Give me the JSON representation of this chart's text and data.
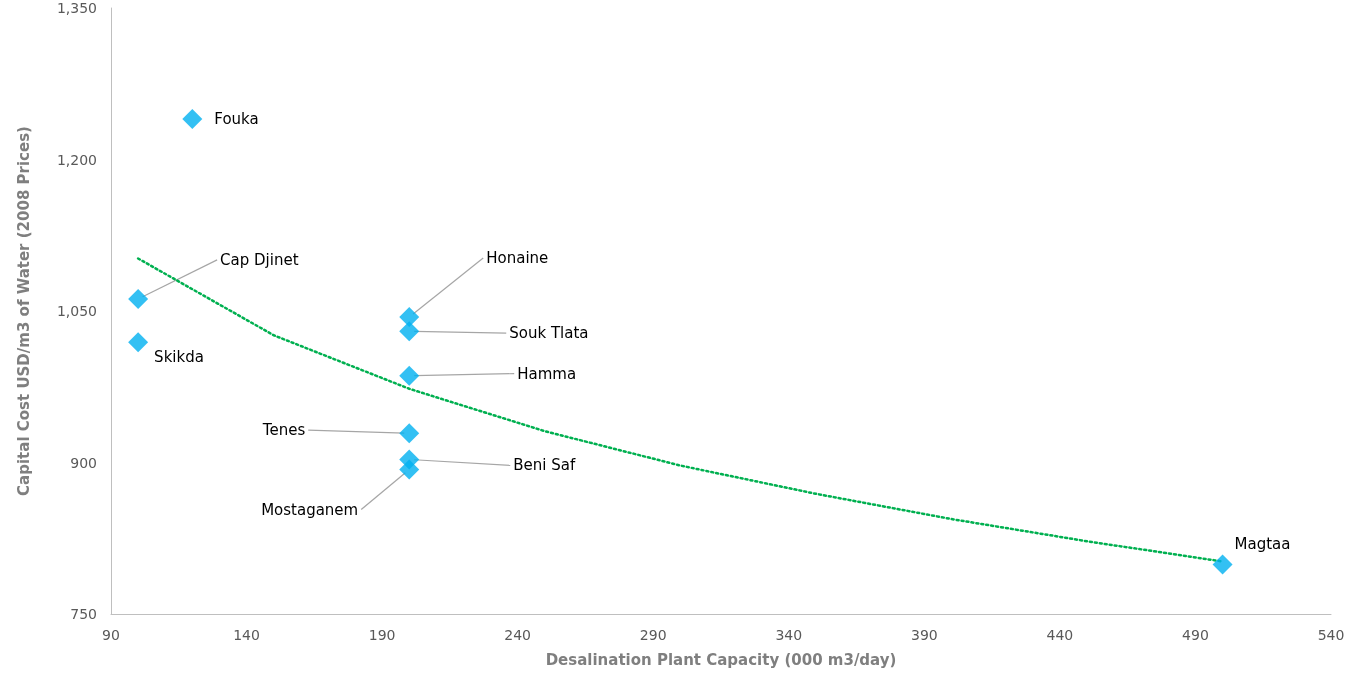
{
  "chart_data": {
    "type": "scatter",
    "xlabel": "Desalination Plant Capacity (000 m3/day)",
    "ylabel": "Capital Cost USD/m3 of Water (2008 Prices)",
    "series": [
      {
        "color": "#00b0f0",
        "marker": "diamond",
        "x": [
          120,
          100,
          100,
          200,
          200,
          200,
          200,
          200,
          200,
          500
        ],
        "values": [
          1240,
          1062,
          1019,
          1044,
          1030,
          986,
          929,
          903,
          893,
          799
        ]
      },
      {
        "type": "line",
        "color": "#00b050",
        "marker": "none",
        "line_style": "dotted",
        "x": [
          100,
          150,
          200,
          250,
          300,
          350,
          400,
          450,
          500
        ],
        "values": [
          1102,
          1026,
          973,
          931,
          897,
          869,
          844,
          822,
          802
        ]
      }
    ],
    "annotations": [
      {
        "text": "Fouka",
        "x": 120,
        "y": 1240
      },
      {
        "text": "Cap Djinet",
        "x": 100,
        "y": 1062
      },
      {
        "text": "Skikda",
        "x": 100,
        "y": 1019
      },
      {
        "text": "Honaine",
        "x": 200,
        "y": 1044
      },
      {
        "text": "Souk Tlata",
        "x": 200,
        "y": 1030
      },
      {
        "text": "Hamma",
        "x": 200,
        "y": 986
      },
      {
        "text": "Tenes",
        "x": 200,
        "y": 929
      },
      {
        "text": "Beni Saf",
        "x": 200,
        "y": 903
      },
      {
        "text": "Mostaganem",
        "x": 200,
        "y": 893
      },
      {
        "text": "Magtaa",
        "x": 500,
        "y": 799
      }
    ],
    "xlim": [
      90,
      540
    ],
    "xticks": [
      90,
      140,
      190,
      240,
      290,
      340,
      390,
      440,
      490,
      540
    ],
    "ylim": [
      750,
      1350
    ],
    "yticks": [
      750,
      {
        "value": 900,
        "label": "900"
      },
      {
        "value": 1050,
        "label": "1,050"
      },
      {
        "value": 1200,
        "label": "1,200"
      },
      {
        "value": 1350,
        "label": "1,350"
      }
    ],
    "grid": false
  }
}
